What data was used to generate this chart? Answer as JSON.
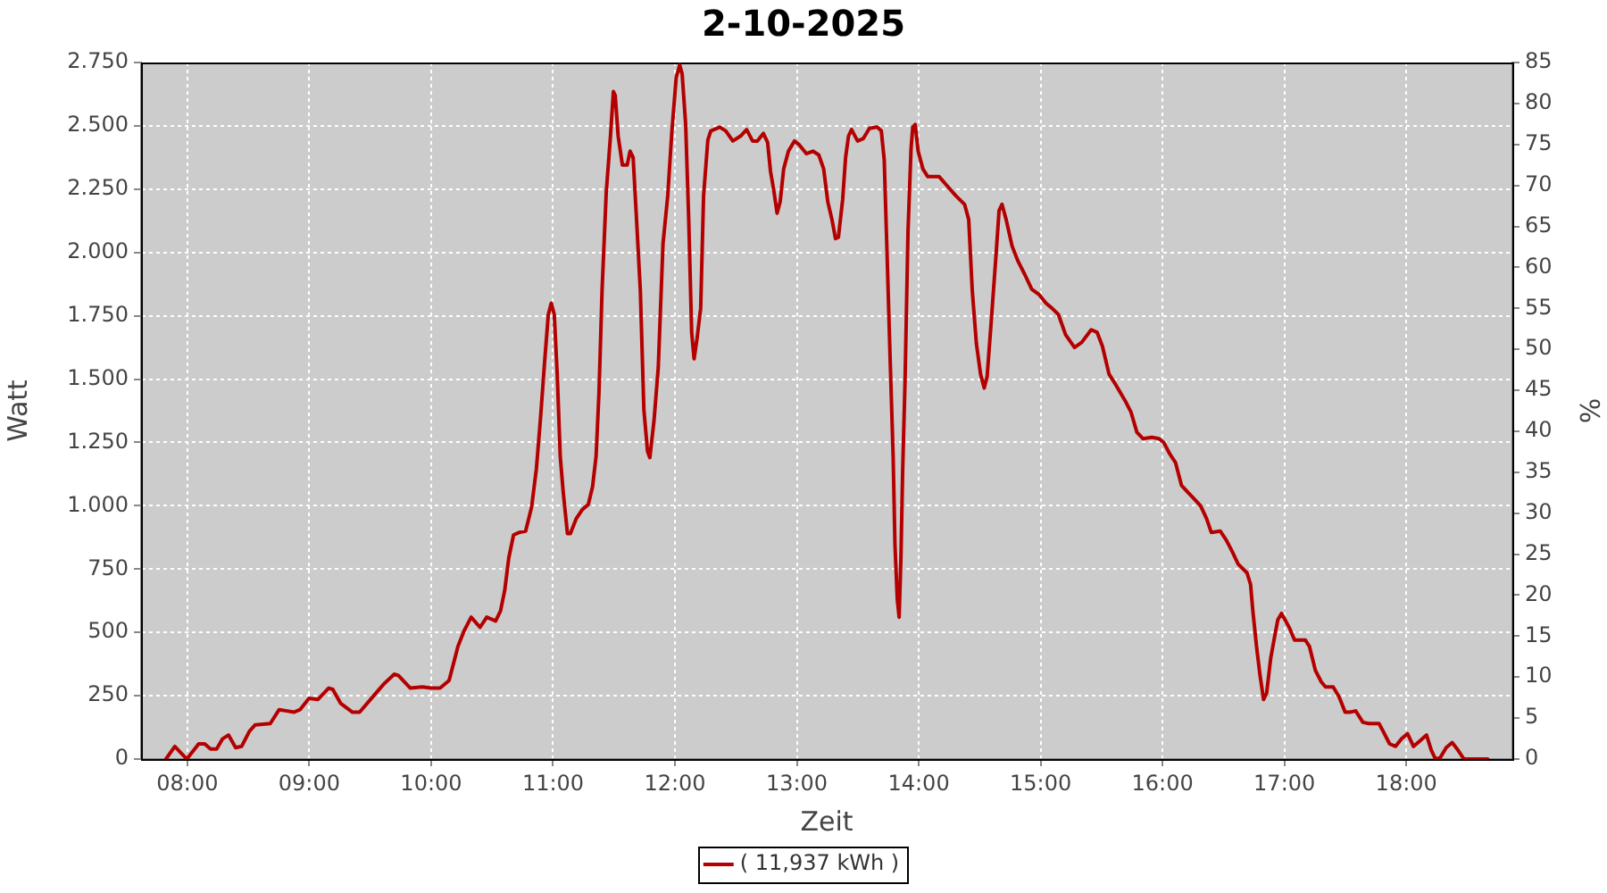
{
  "chart_data": {
    "type": "line",
    "title": "2-10-2025",
    "xlabel": "Zeit",
    "ylabel": "Watt",
    "y2label": "%",
    "x": [
      7.824,
      7.897,
      7.995,
      8.093,
      8.142,
      8.19,
      8.24,
      8.289,
      8.337,
      8.396,
      8.445,
      8.509,
      8.557,
      8.68,
      8.753,
      8.817,
      8.875,
      8.924,
      8.998,
      9.07,
      9.159,
      9.193,
      9.257,
      9.355,
      9.413,
      9.511,
      9.609,
      9.697,
      9.731,
      9.829,
      9.927,
      10.0,
      10.073,
      10.147,
      10.22,
      10.269,
      10.328,
      10.401,
      10.456,
      10.529,
      10.569,
      10.603,
      10.637,
      10.676,
      10.725,
      10.775,
      10.824,
      10.863,
      10.897,
      10.931,
      10.961,
      10.985,
      11.01,
      11.034,
      11.059,
      11.083,
      11.118,
      11.142,
      11.191,
      11.24,
      11.289,
      11.324,
      11.353,
      11.377,
      11.402,
      11.436,
      11.471,
      11.495,
      11.51,
      11.534,
      11.569,
      11.608,
      11.632,
      11.657,
      11.681,
      11.716,
      11.745,
      11.775,
      11.794,
      11.828,
      11.863,
      11.902,
      11.941,
      11.975,
      12.01,
      12.039,
      12.059,
      12.088,
      12.113,
      12.137,
      12.157,
      12.181,
      12.211,
      12.235,
      12.27,
      12.294,
      12.368,
      12.417,
      12.475,
      12.539,
      12.588,
      12.637,
      12.676,
      12.725,
      12.76,
      12.784,
      12.809,
      12.838,
      12.863,
      12.892,
      12.931,
      12.98,
      13.02,
      13.078,
      13.132,
      13.18,
      13.22,
      13.254,
      13.288,
      13.317,
      13.341,
      13.376,
      13.4,
      13.424,
      13.449,
      13.498,
      13.546,
      13.595,
      13.659,
      13.693,
      13.717,
      13.741,
      13.766,
      13.79,
      13.805,
      13.824,
      13.839,
      13.854,
      13.868,
      13.888,
      13.912,
      13.937,
      13.951,
      13.971,
      13.995,
      14.034,
      14.073,
      14.166,
      14.229,
      14.302,
      14.376,
      14.41,
      14.439,
      14.473,
      14.507,
      14.537,
      14.561,
      14.595,
      14.634,
      14.659,
      14.683,
      14.717,
      14.766,
      14.815,
      14.873,
      14.927,
      14.985,
      15.044,
      15.093,
      15.146,
      15.205,
      15.278,
      15.337,
      15.415,
      15.463,
      15.507,
      15.561,
      15.62,
      15.693,
      15.741,
      15.79,
      15.839,
      15.912,
      15.971,
      16.01,
      16.059,
      16.107,
      16.156,
      16.205,
      16.254,
      16.312,
      16.361,
      16.4,
      16.473,
      16.522,
      16.571,
      16.62,
      16.693,
      16.722,
      16.741,
      16.771,
      16.8,
      16.829,
      16.854,
      16.888,
      16.922,
      16.946,
      16.976,
      17.005,
      17.044,
      17.083,
      17.132,
      17.171,
      17.205,
      17.254,
      17.302,
      17.337,
      17.4,
      17.449,
      17.498,
      17.537,
      17.585,
      17.644,
      17.693,
      17.776,
      17.815,
      17.863,
      17.912,
      17.961,
      18.01,
      18.059,
      18.107,
      18.166,
      18.205,
      18.239,
      18.278,
      18.327,
      18.376,
      18.424,
      18.473,
      18.668
    ],
    "series": [
      {
        "name": "( 11,937 kWh )",
        "color": "#b40000",
        "values": [
          0,
          50,
          0,
          60,
          60,
          40,
          40,
          80,
          95,
          45,
          50,
          110,
          135,
          140,
          195,
          190,
          185,
          195,
          240,
          235,
          280,
          275,
          220,
          185,
          185,
          240,
          295,
          335,
          330,
          280,
          285,
          280,
          280,
          310,
          445,
          505,
          560,
          520,
          560,
          545,
          585,
          665,
          795,
          885,
          895,
          900,
          995,
          1145,
          1345,
          1570,
          1755,
          1800,
          1755,
          1520,
          1195,
          1055,
          890,
          890,
          950,
          985,
          1005,
          1075,
          1195,
          1450,
          1850,
          2235,
          2460,
          2635,
          2620,
          2460,
          2345,
          2345,
          2400,
          2375,
          2165,
          1850,
          1380,
          1215,
          1190,
          1335,
          1545,
          2035,
          2225,
          2480,
          2690,
          2740,
          2705,
          2505,
          2130,
          1685,
          1580,
          1660,
          1780,
          2225,
          2445,
          2480,
          2495,
          2480,
          2440,
          2460,
          2485,
          2440,
          2440,
          2470,
          2435,
          2320,
          2250,
          2155,
          2200,
          2330,
          2400,
          2440,
          2425,
          2390,
          2400,
          2385,
          2330,
          2200,
          2130,
          2055,
          2060,
          2210,
          2375,
          2460,
          2485,
          2440,
          2450,
          2490,
          2495,
          2480,
          2365,
          1980,
          1570,
          1195,
          845,
          630,
          560,
          795,
          1135,
          1500,
          2085,
          2410,
          2495,
          2505,
          2400,
          2330,
          2300,
          2300,
          2265,
          2225,
          2190,
          2130,
          1850,
          1640,
          1520,
          1465,
          1510,
          1730,
          1990,
          2165,
          2190,
          2130,
          2025,
          1965,
          1910,
          1855,
          1835,
          1800,
          1780,
          1755,
          1675,
          1625,
          1645,
          1695,
          1685,
          1630,
          1520,
          1475,
          1415,
          1370,
          1290,
          1265,
          1270,
          1265,
          1250,
          1205,
          1170,
          1080,
          1055,
          1030,
          1000,
          950,
          895,
          900,
          865,
          820,
          770,
          735,
          690,
          585,
          445,
          330,
          235,
          260,
          400,
          490,
          550,
          575,
          550,
          515,
          470,
          470,
          470,
          445,
          350,
          305,
          285,
          285,
          245,
          185,
          185,
          190,
          145,
          140,
          140,
          105,
          60,
          50,
          80,
          100,
          50,
          70,
          95,
          35,
          0,
          5,
          45,
          65,
          35,
          0,
          0
        ]
      }
    ],
    "xlim": [
      7.62,
      18.87
    ],
    "xticks": [
      {
        "value": 8,
        "label": "08:00"
      },
      {
        "value": 9,
        "label": "09:00"
      },
      {
        "value": 10,
        "label": "10:00"
      },
      {
        "value": 11,
        "label": "11:00"
      },
      {
        "value": 12,
        "label": "12:00"
      },
      {
        "value": 13,
        "label": "13:00"
      },
      {
        "value": 14,
        "label": "14:00"
      },
      {
        "value": 15,
        "label": "15:00"
      },
      {
        "value": 16,
        "label": "16:00"
      },
      {
        "value": 17,
        "label": "17:00"
      },
      {
        "value": 18,
        "label": "18:00"
      }
    ],
    "ylim": [
      0,
      2750
    ],
    "yticks": [
      0,
      250,
      500,
      750,
      {
        "value": 1000,
        "label": "1.000"
      },
      {
        "value": 1250,
        "label": "1.250"
      },
      {
        "value": 1500,
        "label": "1.500"
      },
      {
        "value": 1750,
        "label": "1.750"
      },
      {
        "value": 2000,
        "label": "2.000"
      },
      {
        "value": 2250,
        "label": "2.250"
      },
      {
        "value": 2500,
        "label": "2.500"
      },
      {
        "value": 2750,
        "label": "2.750"
      }
    ],
    "y2lim": [
      0,
      85
    ],
    "y2ticks": [
      0,
      5,
      10,
      15,
      20,
      25,
      30,
      35,
      40,
      45,
      50,
      55,
      60,
      65,
      70,
      75,
      80,
      85
    ],
    "grid": true,
    "legend": "bottom"
  }
}
